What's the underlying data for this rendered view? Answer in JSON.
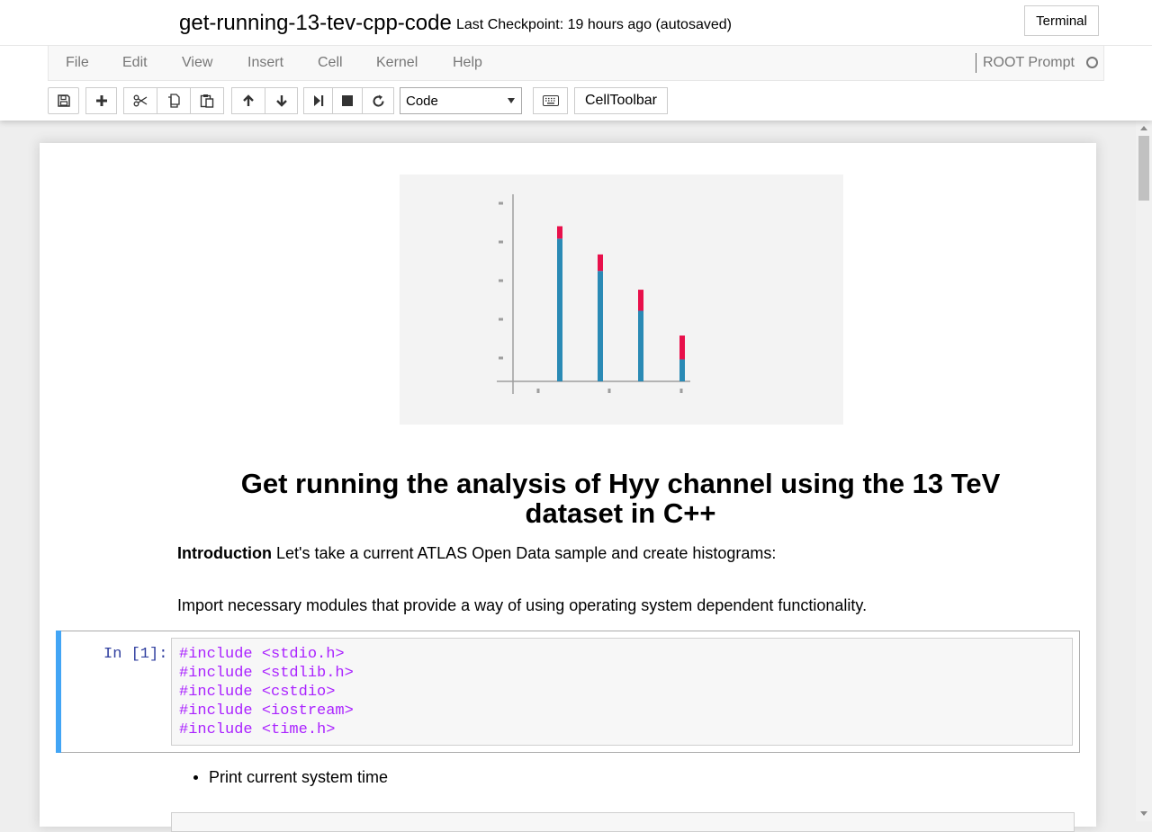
{
  "header": {
    "notebook_title": "get-running-13-tev-cpp-code",
    "checkpoint": "Last Checkpoint: 19 hours ago (autosaved)",
    "terminal_label": "Terminal"
  },
  "menubar": {
    "items": [
      "File",
      "Edit",
      "View",
      "Insert",
      "Cell",
      "Kernel",
      "Help"
    ],
    "kernel_name": "ROOT Prompt"
  },
  "toolbar": {
    "buttons": [
      "save-icon",
      "add-icon",
      "cut-icon",
      "copy-icon",
      "paste-icon",
      "arrow-up-icon",
      "arrow-down-icon",
      "run-icon",
      "stop-icon",
      "restart-icon",
      "keyboard-icon"
    ],
    "cell_type": "Code",
    "celltoolbar_label": "CellToolbar"
  },
  "notebook": {
    "heading": "Get running the analysis of Hyy channel using the 13 TeV dataset in C++",
    "intro_bold": "Introduction",
    "intro_text": " Let's take a current ATLAS Open Data sample and create histograms:",
    "import_text": "Import necessary modules that provide a way of using operating system dependent functionality.",
    "cell_prompt": "In [1]:",
    "code_lines": [
      "#include <stdio.h>",
      "#include <stdlib.h>",
      "#include <cstdio>",
      "#include <iostream>",
      "#include <time.h>"
    ],
    "bullet": "Print current system time"
  },
  "figure": {
    "colors": {
      "bar_bottom": "#2a8ab5",
      "bar_top": "#e8104b",
      "axis": "#9e9e9e",
      "background": "#f3f3f3"
    },
    "bars": [
      {
        "total": 0.88,
        "top_fraction": 0.08
      },
      {
        "total": 0.72,
        "top_fraction": 0.13
      },
      {
        "total": 0.52,
        "top_fraction": 0.23
      },
      {
        "total": 0.26,
        "top_fraction": 0.52
      }
    ]
  }
}
